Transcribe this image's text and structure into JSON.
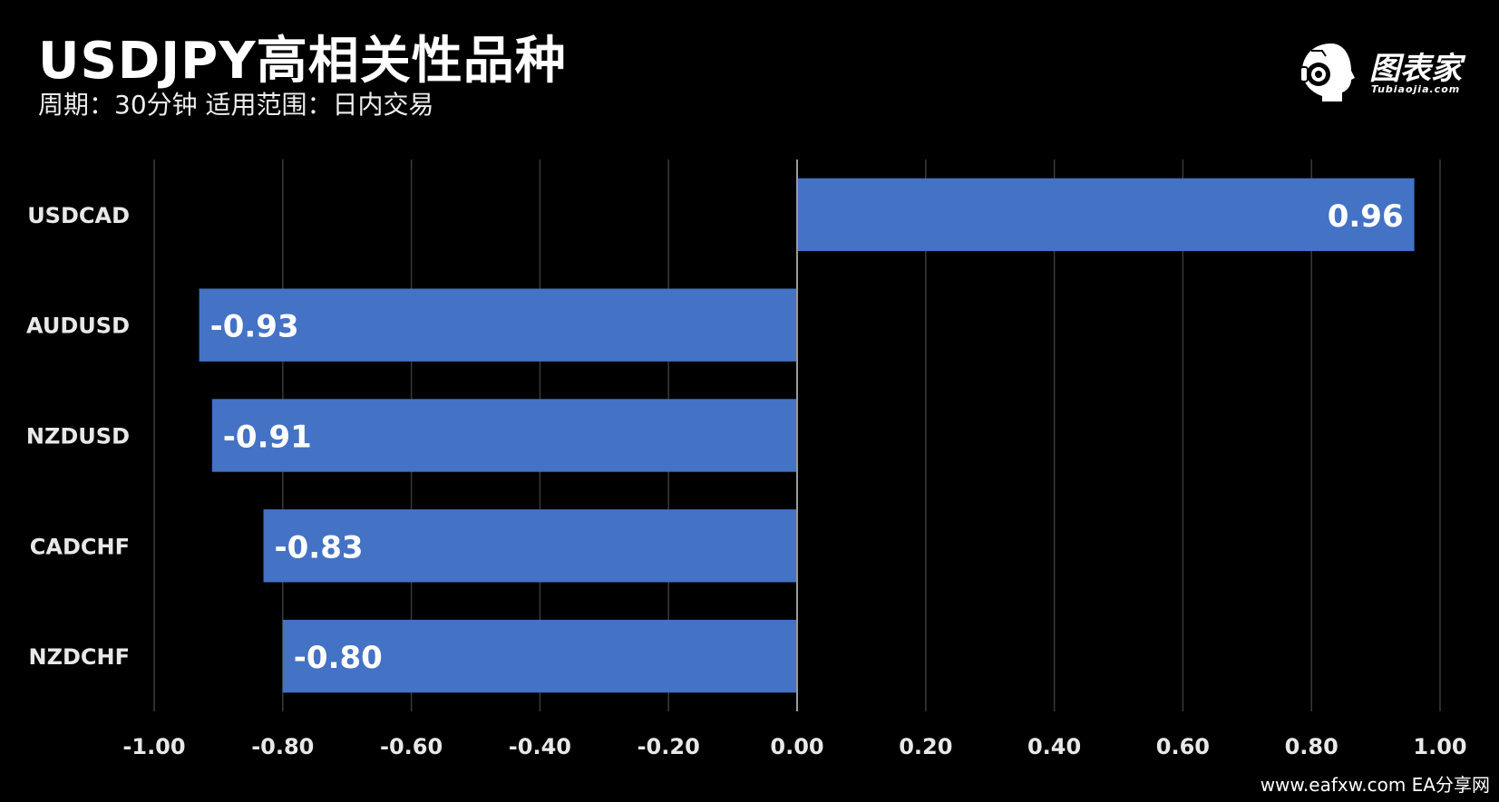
{
  "header": {
    "title": "USDJPY高相关性品种",
    "subtitle": "周期：30分钟  适用范围：日内交易"
  },
  "brand": {
    "name": "图表家",
    "site": "Tubiaojia.com",
    "icon": "robot-head-logo-icon"
  },
  "watermark": "www.eafxw.com   EA分享网",
  "chart_data": {
    "type": "bar",
    "orientation": "horizontal",
    "categories": [
      "USDCAD",
      "AUDUSD",
      "NZDUSD",
      "CADCHF",
      "NZDCHF"
    ],
    "values": [
      0.96,
      -0.93,
      -0.91,
      -0.83,
      -0.8
    ],
    "value_labels": [
      "0.96",
      "-0.93",
      "-0.91",
      "-0.83",
      "-0.80"
    ],
    "xlim": [
      -1.0,
      1.0
    ],
    "xticks": [
      -1.0,
      -0.8,
      -0.6,
      -0.4,
      -0.2,
      0.0,
      0.2,
      0.4,
      0.6,
      0.8,
      1.0
    ],
    "xtick_labels": [
      "-1.00",
      "-0.80",
      "-0.60",
      "-0.40",
      "-0.20",
      "0.00",
      "0.20",
      "0.40",
      "0.60",
      "0.80",
      "1.00"
    ],
    "grid": true,
    "legend": "none",
    "bar_color": "#4472c4",
    "grid_color": "#3a3a3a",
    "background": "#000000"
  }
}
